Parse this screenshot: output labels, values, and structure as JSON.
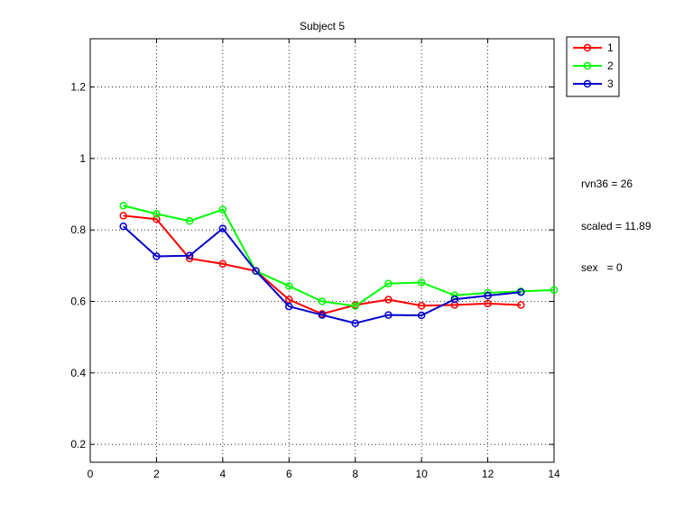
{
  "chart_data": {
    "type": "line",
    "title": "Subject 5",
    "xlabel": "",
    "ylabel": "",
    "xlim": [
      0,
      14
    ],
    "ylim": [
      0.15,
      1.335
    ],
    "xticks": [
      0,
      2,
      4,
      6,
      8,
      10,
      12,
      14
    ],
    "xtick_labels": [
      "0",
      "2",
      "4",
      "6",
      "8",
      "10",
      "12",
      "14"
    ],
    "yticks": [
      0.2,
      0.4,
      0.6,
      0.8,
      1.0,
      1.2
    ],
    "ytick_labels": [
      "0.2",
      "0.4",
      "0.6",
      "0.8",
      "1",
      "1.2"
    ],
    "grid": true,
    "legend_position": "outside top-right",
    "marker": "circle",
    "series": [
      {
        "name": "1",
        "color": "#ff0000",
        "x": [
          1,
          2,
          3,
          4,
          5,
          6,
          7,
          8,
          9,
          10,
          11,
          12,
          13
        ],
        "y": [
          0.84,
          0.83,
          0.72,
          0.705,
          0.685,
          0.605,
          0.565,
          0.59,
          0.605,
          0.588,
          0.59,
          0.594,
          0.59
        ]
      },
      {
        "name": "2",
        "color": "#00ff00",
        "x": [
          1,
          2,
          3,
          4,
          5,
          6,
          7,
          8,
          9,
          10,
          11,
          12,
          13,
          14
        ],
        "y": [
          0.868,
          0.845,
          0.825,
          0.857,
          0.685,
          0.643,
          0.6,
          0.587,
          0.65,
          0.653,
          0.617,
          0.624,
          0.628,
          0.632
        ]
      },
      {
        "name": "3",
        "color": "#0000cc",
        "x": [
          1,
          2,
          3,
          4,
          5,
          6,
          7,
          8,
          9,
          10,
          11,
          12,
          13
        ],
        "y": [
          0.81,
          0.726,
          0.728,
          0.804,
          0.685,
          0.586,
          0.562,
          0.539,
          0.562,
          0.561,
          0.606,
          0.616,
          0.626
        ]
      }
    ]
  },
  "annotation_lines": [
    "rvn36 = 26",
    "scaled = 11.89",
    "sex   = 0"
  ]
}
